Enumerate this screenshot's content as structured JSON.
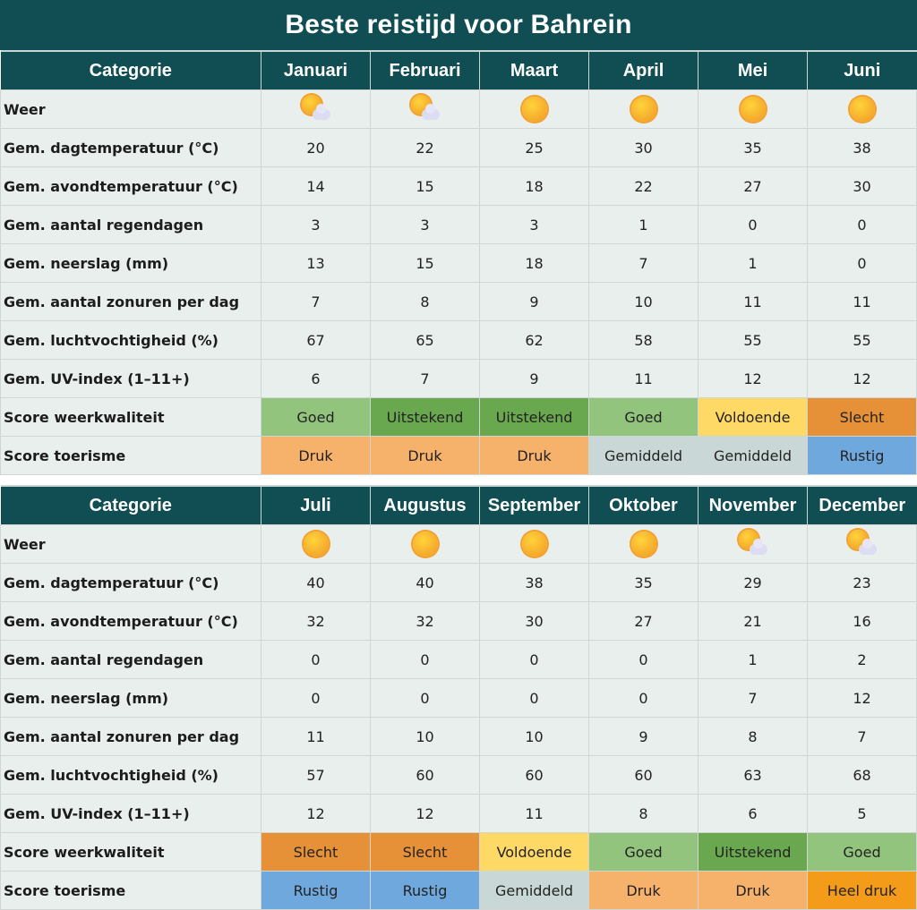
{
  "title": "Beste reistijd voor Bahrein",
  "colors": {
    "header_bg": "#114e53",
    "row_bg": "#e9efed",
    "Goed": "#93c47d",
    "Uitstekend": "#6aa84f",
    "Voldoende": "#ffd966",
    "Slecht": "#e69138",
    "Druk": "#f6b26b",
    "Gemiddeld": "#c9d7d6",
    "Rustig": "#6fa8dc",
    "Heel druk": "#f59b1a"
  },
  "tables": [
    {
      "header": {
        "category": "Categorie",
        "months": [
          "Januari",
          "Februari",
          "Maart",
          "April",
          "Mei",
          "Juni"
        ]
      },
      "weather": {
        "label": "Weer",
        "icons": [
          "partly-cloudy",
          "partly-cloudy",
          "sunny",
          "sunny",
          "sunny",
          "sunny"
        ]
      },
      "rows": [
        {
          "label": "Gem. dagtemperatuur (°C)",
          "values": [
            "20",
            "22",
            "25",
            "30",
            "35",
            "38"
          ]
        },
        {
          "label": "Gem. avondtemperatuur (°C)",
          "values": [
            "14",
            "15",
            "18",
            "22",
            "27",
            "30"
          ]
        },
        {
          "label": "Gem. aantal regendagen",
          "values": [
            "3",
            "3",
            "3",
            "1",
            "0",
            "0"
          ]
        },
        {
          "label": "Gem. neerslag (mm)",
          "values": [
            "13",
            "15",
            "18",
            "7",
            "1",
            "0"
          ]
        },
        {
          "label": "Gem. aantal zonuren per dag",
          "values": [
            "7",
            "8",
            "9",
            "10",
            "11",
            "11"
          ]
        },
        {
          "label": "Gem. luchtvochtigheid (%)",
          "values": [
            "67",
            "65",
            "62",
            "58",
            "55",
            "55"
          ]
        },
        {
          "label": "Gem. UV-index (1–11+)",
          "values": [
            "6",
            "7",
            "9",
            "11",
            "12",
            "12"
          ]
        }
      ],
      "weather_score": {
        "label": "Score weerkwaliteit",
        "values": [
          "Goed",
          "Uitstekend",
          "Uitstekend",
          "Goed",
          "Voldoende",
          "Slecht"
        ]
      },
      "tourism_score": {
        "label": "Score toerisme",
        "values": [
          "Druk",
          "Druk",
          "Druk",
          "Gemiddeld",
          "Gemiddeld",
          "Rustig"
        ]
      }
    },
    {
      "header": {
        "category": "Categorie",
        "months": [
          "Juli",
          "Augustus",
          "September",
          "Oktober",
          "November",
          "December"
        ]
      },
      "weather": {
        "label": "Weer",
        "icons": [
          "sunny",
          "sunny",
          "sunny",
          "sunny",
          "partly-cloudy",
          "partly-cloudy"
        ]
      },
      "rows": [
        {
          "label": "Gem. dagtemperatuur (°C)",
          "values": [
            "40",
            "40",
            "38",
            "35",
            "29",
            "23"
          ]
        },
        {
          "label": "Gem. avondtemperatuur (°C)",
          "values": [
            "32",
            "32",
            "30",
            "27",
            "21",
            "16"
          ]
        },
        {
          "label": "Gem. aantal regendagen",
          "values": [
            "0",
            "0",
            "0",
            "0",
            "1",
            "2"
          ]
        },
        {
          "label": "Gem. neerslag (mm)",
          "values": [
            "0",
            "0",
            "0",
            "0",
            "7",
            "12"
          ]
        },
        {
          "label": "Gem. aantal zonuren per dag",
          "values": [
            "11",
            "10",
            "10",
            "9",
            "8",
            "7"
          ]
        },
        {
          "label": "Gem. luchtvochtigheid (%)",
          "values": [
            "57",
            "60",
            "60",
            "60",
            "63",
            "68"
          ]
        },
        {
          "label": "Gem. UV-index (1–11+)",
          "values": [
            "12",
            "12",
            "11",
            "8",
            "6",
            "5"
          ]
        }
      ],
      "weather_score": {
        "label": "Score weerkwaliteit",
        "values": [
          "Slecht",
          "Slecht",
          "Voldoende",
          "Goed",
          "Uitstekend",
          "Goed"
        ]
      },
      "tourism_score": {
        "label": "Score toerisme",
        "values": [
          "Rustig",
          "Rustig",
          "Gemiddeld",
          "Druk",
          "Druk",
          "Heel druk"
        ]
      }
    }
  ]
}
